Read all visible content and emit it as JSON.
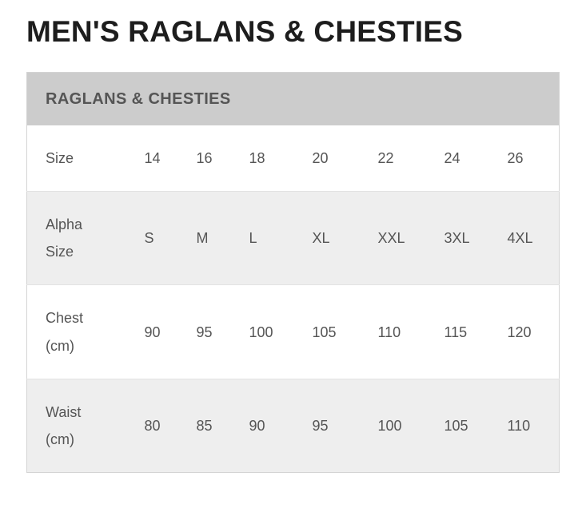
{
  "page": {
    "title": "MEN'S RAGLANS & CHESTIES"
  },
  "size_chart": {
    "header": "RAGLANS & CHESTIES",
    "rows": [
      {
        "label": "Size",
        "values": [
          "14",
          "16",
          "18",
          "20",
          "22",
          "24",
          "26"
        ]
      },
      {
        "label": "Alpha Size",
        "values": [
          "S",
          "M",
          "L",
          "XL",
          "XXL",
          "3XL",
          "4XL"
        ]
      },
      {
        "label": "Chest (cm)",
        "values": [
          "90",
          "95",
          "100",
          "105",
          "110",
          "115",
          "120"
        ]
      },
      {
        "label": "Waist (cm)",
        "values": [
          "80",
          "85",
          "90",
          "95",
          "100",
          "105",
          "110"
        ]
      }
    ]
  },
  "colors": {
    "title_text": "#1d1d1d",
    "header_bg": "#cccccc",
    "header_text": "#555555",
    "body_text": "#555555",
    "row_bg": "#ffffff",
    "row_alt_bg": "#eeeeee",
    "table_border": "#d4d4d4",
    "row_divider": "#e2e2e2"
  }
}
